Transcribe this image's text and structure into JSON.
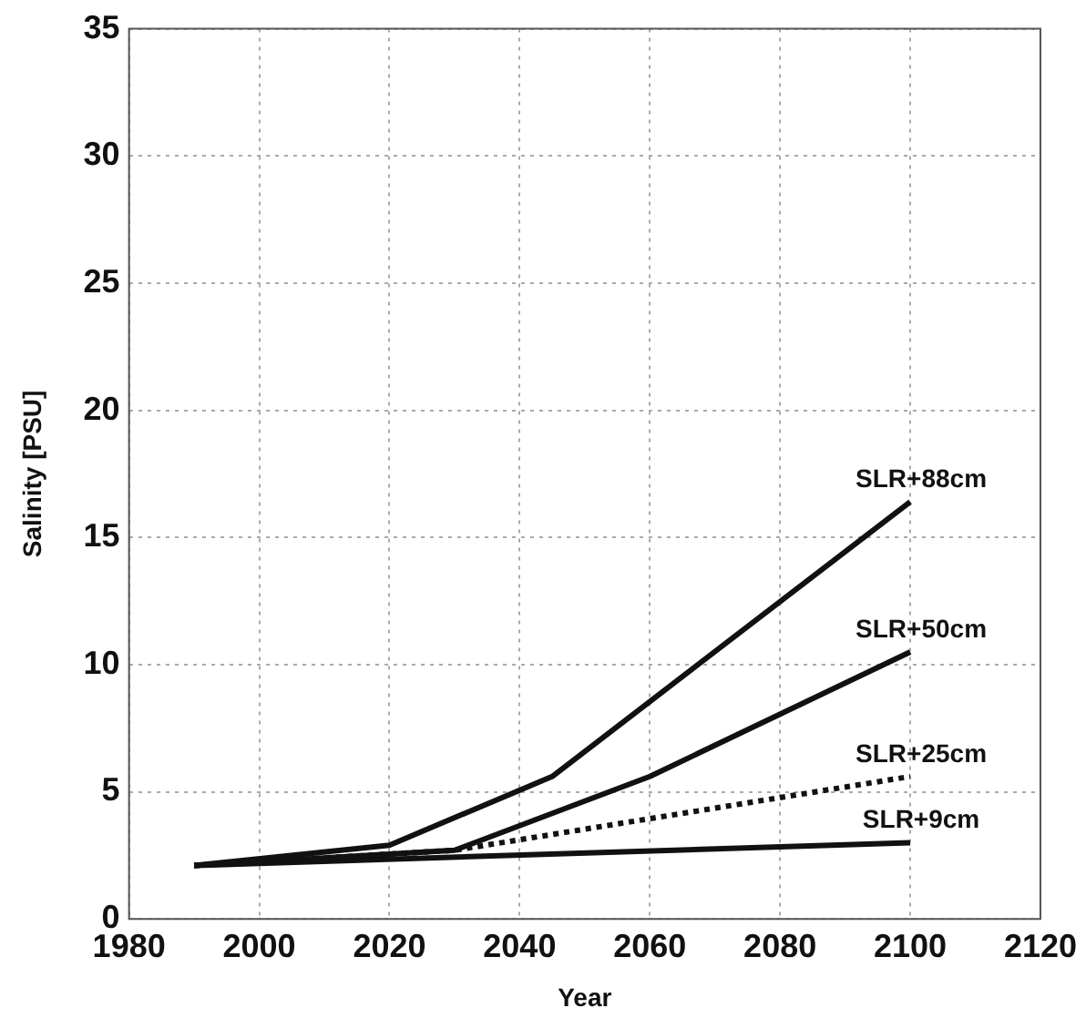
{
  "chart_data": {
    "type": "line",
    "xlabel": "Year",
    "ylabel": "Salinity [PSU]",
    "xlim": [
      1980,
      2120
    ],
    "xticks": [
      1980,
      2000,
      2020,
      2040,
      2060,
      2080,
      2100,
      2120
    ],
    "ylim": [
      0,
      35
    ],
    "yticks": [
      0,
      5,
      10,
      15,
      20,
      25,
      30,
      35
    ],
    "grid": true,
    "legend": false,
    "marker": "none",
    "series": [
      {
        "name": "SLR+88cm",
        "color": "#111111",
        "x": [
          1990,
          2020,
          2045,
          2100
        ],
        "values": [
          2.1,
          2.9,
          5.6,
          16.4
        ],
        "line_style": "solid"
      },
      {
        "name": "SLR+50cm",
        "color": "#111111",
        "x": [
          1990,
          2030,
          2060,
          2100
        ],
        "values": [
          2.1,
          2.7,
          5.6,
          10.5
        ],
        "line_style": "solid"
      },
      {
        "name": "SLR+25cm",
        "color": "#111111",
        "x": [
          1990,
          2030,
          2100
        ],
        "values": [
          2.1,
          2.7,
          5.6
        ],
        "line_style": "dotted"
      },
      {
        "name": "SLR+9cm",
        "color": "#111111",
        "x": [
          1990,
          2100
        ],
        "values": [
          2.1,
          3.0
        ],
        "line_style": "solid"
      }
    ]
  }
}
